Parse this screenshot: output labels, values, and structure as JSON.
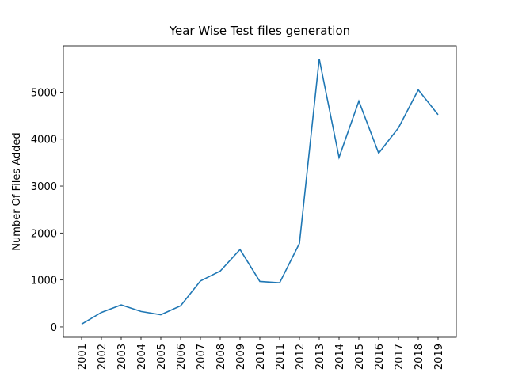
{
  "chart_data": {
    "type": "line",
    "title": "Year Wise Test files generation",
    "y_label": "Number Of Files Added",
    "categories": [
      "2001",
      "2002",
      "2003",
      "2004",
      "2005",
      "2006",
      "2007",
      "2008",
      "2009",
      "2010",
      "2011",
      "2012",
      "2013",
      "2014",
      "2015",
      "2016",
      "2017",
      "2018",
      "2019"
    ],
    "values": [
      60,
      310,
      470,
      330,
      260,
      450,
      980,
      1190,
      1650,
      970,
      940,
      1780,
      5710,
      3610,
      4810,
      3700,
      4240,
      5050,
      4520
    ],
    "color": "#1f77b4",
    "ylim": [
      -220,
      5985
    ],
    "yticks": [
      0,
      1000,
      2000,
      3000,
      4000,
      5000
    ],
    "grid": false
  }
}
